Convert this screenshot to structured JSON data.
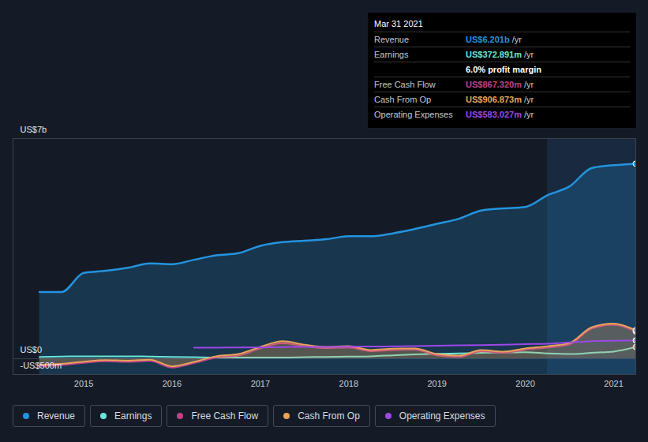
{
  "chart_data": {
    "type": "line",
    "x": [
      2014.5,
      2014.75,
      2015,
      2015.25,
      2015.5,
      2015.75,
      2016,
      2016.25,
      2016.5,
      2016.75,
      2017,
      2017.25,
      2017.5,
      2017.75,
      2018,
      2018.25,
      2018.5,
      2018.75,
      2019,
      2019.25,
      2019.5,
      2019.75,
      2020,
      2020.25,
      2020.5,
      2020.75,
      2021,
      2021.25
    ],
    "xlim": [
      2014.2,
      2021.25
    ],
    "xticks": [
      2015,
      2016,
      2017,
      2018,
      2019,
      2020,
      2021
    ],
    "ylim": [
      -500,
      7000
    ],
    "yticks": [
      {
        "value": -500,
        "label": "-US$500m"
      },
      {
        "value": 0,
        "label": "US$0"
      },
      {
        "value": 7000,
        "label": "US$7b"
      }
    ],
    "grid": true,
    "legend": "bottom",
    "highlight_x": [
      2020.25,
      2021.25
    ],
    "series": [
      {
        "name": "Revenue",
        "color": "#2394df",
        "type": "area",
        "values": [
          2121,
          2121,
          2727,
          2797,
          2890,
          3030,
          3007,
          3147,
          3287,
          3357,
          3590,
          3706,
          3753,
          3800,
          3893,
          3893,
          3986,
          4126,
          4289,
          4452,
          4709,
          4779,
          4825,
          5198,
          5478,
          6061,
          6154,
          6201
        ]
      },
      {
        "name": "Earnings",
        "color": "#6ce6d6",
        "type": "line",
        "values": [
          60,
          70,
          80,
          80,
          80,
          70,
          60,
          50,
          40,
          40,
          40,
          40,
          50,
          60,
          70,
          80,
          110,
          140,
          160,
          170,
          190,
          200,
          210,
          170,
          150,
          190,
          230,
          372.891
        ]
      },
      {
        "name": "Free Cash Flow",
        "color": "#c0408a",
        "type": "line",
        "values": [
          -230,
          -200,
          -130,
          -80,
          -100,
          -70,
          -280,
          -140,
          40,
          100,
          330,
          500,
          400,
          340,
          360,
          240,
          280,
          290,
          110,
          60,
          240,
          190,
          290,
          360,
          460,
          960,
          1080,
          867.32
        ]
      },
      {
        "name": "Cash From Op",
        "color": "#e8a35a",
        "type": "area",
        "values": [
          -190,
          -160,
          -90,
          -40,
          -60,
          -30,
          -240,
          -100,
          80,
          150,
          380,
          560,
          450,
          380,
          400,
          280,
          320,
          330,
          150,
          100,
          280,
          230,
          330,
          400,
          500,
          1000,
          1120,
          906.873
        ]
      },
      {
        "name": "Operating Expenses",
        "color": "#9c48e6",
        "type": "line",
        "values": [
          null,
          null,
          null,
          null,
          null,
          null,
          null,
          350,
          355,
          360,
          365,
          370,
          375,
          380,
          385,
          390,
          395,
          405,
          415,
          425,
          435,
          450,
          465,
          480,
          520,
          560,
          575,
          583.027
        ]
      }
    ],
    "tooltip": {
      "title": "Mar 31 2021",
      "rows": [
        {
          "label": "Revenue",
          "value": "US$6.201b",
          "unit": "/yr"
        },
        {
          "label": "Earnings",
          "value": "US$372.891m",
          "unit": "/yr"
        },
        {
          "label": "",
          "value": "6.0% profit margin",
          "unit": null
        },
        {
          "label": "Free Cash Flow",
          "value": "US$867.320m",
          "unit": "/yr"
        },
        {
          "label": "Cash From Op",
          "value": "US$906.873m",
          "unit": "/yr"
        },
        {
          "label": "Operating Expenses",
          "value": "US$583.027m",
          "unit": "/yr"
        }
      ]
    }
  }
}
